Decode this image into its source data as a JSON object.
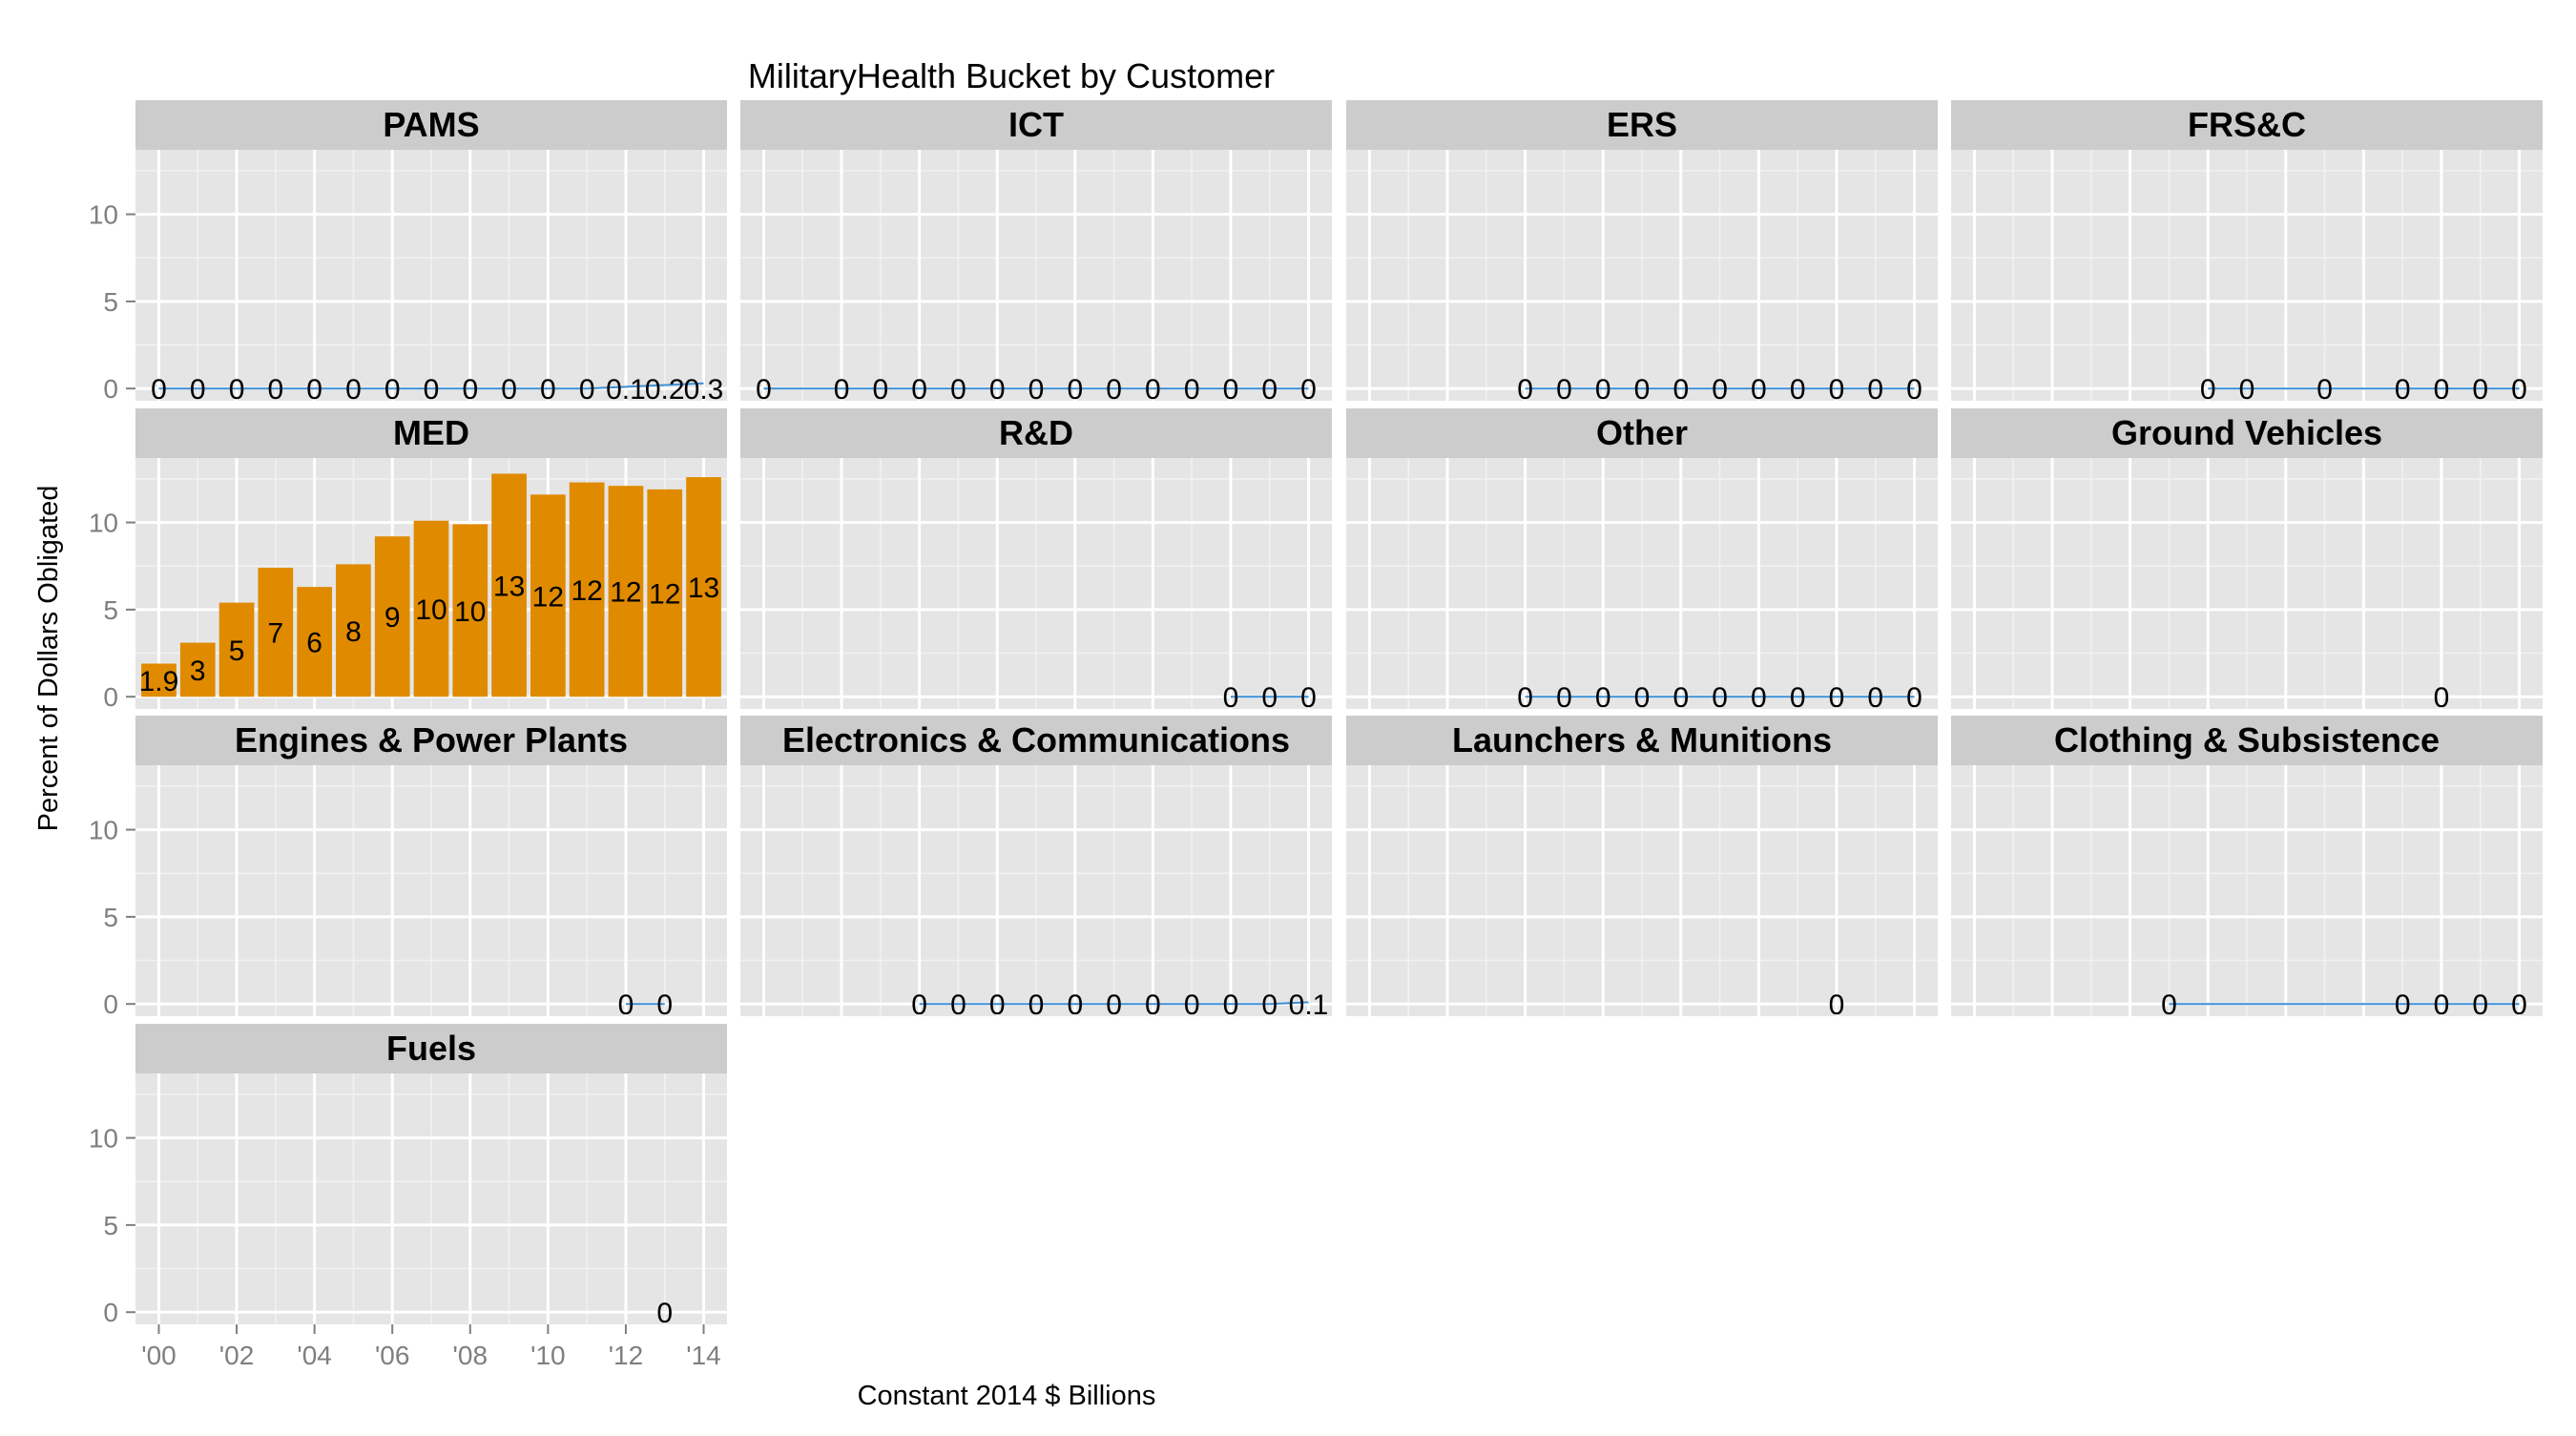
{
  "title": "MilitaryHealth Bucket by Customer",
  "x_axis_label": "Constant 2014 $ Billions",
  "y_axis_label": "Percent of Dollars Obligated",
  "colors": {
    "panel_background": "#e5e5e5",
    "strip_background": "#cccccc",
    "grid_major": "#ffffff",
    "grid_minor": "#f2f2f2",
    "bar_fill": "#e08a00",
    "line_color": "#3a8fd6",
    "axis_text": "#7f7f7f",
    "label_text": "#000000"
  },
  "chart_data": {
    "type": "bar",
    "title": "MilitaryHealth Bucket by Customer",
    "xlabel": "Constant 2014 $ Billions",
    "ylabel": "Percent of Dollars Obligated",
    "x_ticks": [
      2000,
      2002,
      2004,
      2006,
      2008,
      2010,
      2012,
      2014
    ],
    "x_tick_labels": [
      "'00",
      "'02",
      "'04",
      "'06",
      "'08",
      "'10",
      "'12",
      "'14"
    ],
    "xlim": [
      1999.4,
      2014.6
    ],
    "y_ticks": [
      0,
      5,
      10
    ],
    "y_tick_labels": [
      "0",
      "5",
      "10"
    ],
    "ylim": [
      -0.7,
      13.7
    ],
    "grid": true,
    "layout": "facet_wrap",
    "columns": 4,
    "panels": [
      {
        "name": "PAMS",
        "mark": "line",
        "x": [
          2000,
          2001,
          2002,
          2003,
          2004,
          2005,
          2006,
          2007,
          2008,
          2009,
          2010,
          2011,
          2012,
          2013,
          2014
        ],
        "values": [
          0,
          0,
          0,
          0,
          0,
          0,
          0,
          0,
          0,
          0,
          0,
          0,
          0.1,
          0.2,
          0.3
        ],
        "labels": [
          "0",
          "0",
          "0",
          "0",
          "0",
          "0",
          "0",
          "0",
          "0",
          "0",
          "0",
          "0",
          "0.1",
          "0.2",
          "0.3"
        ]
      },
      {
        "name": "ICT",
        "mark": "line",
        "x": [
          2000,
          2002,
          2003,
          2004,
          2005,
          2006,
          2007,
          2008,
          2009,
          2010,
          2011,
          2012,
          2013,
          2014
        ],
        "values": [
          0,
          0,
          0,
          0,
          0,
          0,
          0,
          0,
          0,
          0,
          0,
          0,
          0,
          0
        ],
        "labels": [
          "0",
          "0",
          "0",
          "0",
          "0",
          "0",
          "0",
          "0",
          "0",
          "0",
          "0",
          "0",
          "0",
          "0"
        ]
      },
      {
        "name": "ERS",
        "mark": "line",
        "x": [
          2004,
          2005,
          2006,
          2007,
          2008,
          2009,
          2010,
          2011,
          2012,
          2013,
          2014
        ],
        "values": [
          0,
          0,
          0,
          0,
          0,
          0,
          0,
          0,
          0,
          0,
          0
        ],
        "labels": [
          "0",
          "0",
          "0",
          "0",
          "0",
          "0",
          "0",
          "0",
          "0",
          "0",
          "0"
        ]
      },
      {
        "name": "FRS&C",
        "mark": "line",
        "x": [
          2006,
          2007,
          2009,
          2011,
          2012,
          2013,
          2014
        ],
        "values": [
          0,
          0,
          0,
          0,
          0,
          0,
          0
        ],
        "labels": [
          "0",
          "0",
          "0",
          "0",
          "0",
          "0",
          "0"
        ]
      },
      {
        "name": "MED",
        "mark": "bar",
        "x": [
          2000,
          2001,
          2002,
          2003,
          2004,
          2005,
          2006,
          2007,
          2008,
          2009,
          2010,
          2011,
          2012,
          2013,
          2014
        ],
        "values": [
          1.9,
          3.1,
          5.4,
          7.4,
          6.3,
          7.6,
          9.2,
          10.1,
          9.9,
          12.8,
          11.6,
          12.3,
          12.1,
          11.9,
          12.6
        ],
        "labels": [
          "1.9",
          "3",
          "5",
          "7",
          "6",
          "8",
          "9",
          "10",
          "10",
          "13",
          "12",
          "12",
          "12",
          "12",
          "13"
        ]
      },
      {
        "name": "R&D",
        "mark": "line",
        "x": [
          2012,
          2013,
          2014
        ],
        "values": [
          0,
          0,
          0
        ],
        "labels": [
          "0",
          "0",
          "0"
        ]
      },
      {
        "name": "Other",
        "mark": "line",
        "x": [
          2004,
          2005,
          2006,
          2007,
          2008,
          2009,
          2010,
          2011,
          2012,
          2013,
          2014
        ],
        "values": [
          0,
          0,
          0,
          0,
          0,
          0,
          0,
          0,
          0,
          0,
          0
        ],
        "labels": [
          "0",
          "0",
          "0",
          "0",
          "0",
          "0",
          "0",
          "0",
          "0",
          "0",
          "0"
        ]
      },
      {
        "name": "Ground Vehicles",
        "mark": "line",
        "x": [
          2012
        ],
        "values": [
          0
        ],
        "labels": [
          "0"
        ]
      },
      {
        "name": "Engines & Power Plants",
        "mark": "line",
        "x": [
          2012,
          2013
        ],
        "values": [
          0,
          0
        ],
        "labels": [
          "0",
          "0"
        ]
      },
      {
        "name": "Electronics & Communications",
        "mark": "line",
        "x": [
          2004,
          2005,
          2006,
          2007,
          2008,
          2009,
          2010,
          2011,
          2012,
          2013,
          2014
        ],
        "values": [
          0,
          0,
          0,
          0,
          0,
          0,
          0,
          0,
          0,
          0,
          0.1
        ],
        "labels": [
          "0",
          "0",
          "0",
          "0",
          "0",
          "0",
          "0",
          "0",
          "0",
          "0",
          "0.1"
        ]
      },
      {
        "name": "Launchers & Munitions",
        "mark": "line",
        "x": [
          2012
        ],
        "values": [
          0
        ],
        "labels": [
          "0"
        ]
      },
      {
        "name": "Clothing & Subsistence",
        "mark": "line",
        "x": [
          2005,
          2011,
          2012,
          2013,
          2014
        ],
        "values": [
          0,
          0,
          0,
          0,
          0
        ],
        "labels": [
          "0",
          "0",
          "0",
          "0",
          "0"
        ]
      },
      {
        "name": "Fuels",
        "mark": "line",
        "x": [
          2013
        ],
        "values": [
          0
        ],
        "labels": [
          "0"
        ]
      }
    ]
  }
}
